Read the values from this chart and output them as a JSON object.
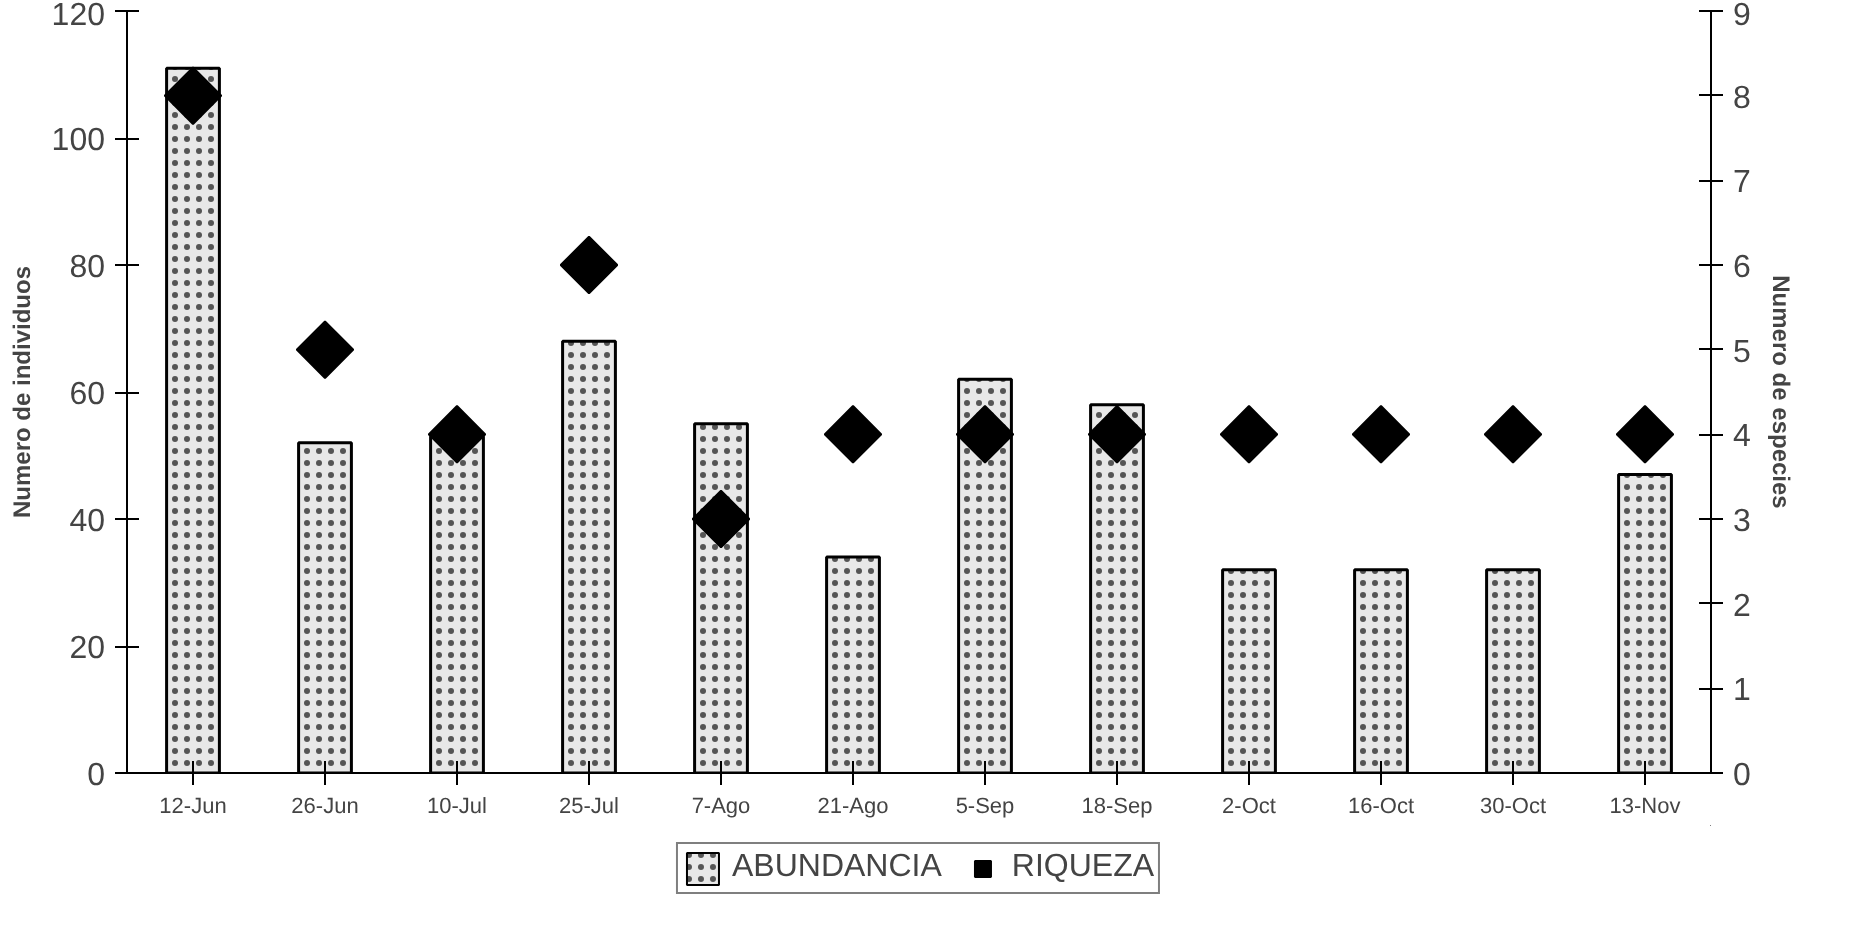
{
  "chart_data": {
    "type": "bar",
    "categories": [
      "12-Jun",
      "26-Jun",
      "10-Jul",
      "25-Jul",
      "7-Ago",
      "21-Ago",
      "5-Sep",
      "18-Sep",
      "2-Oct",
      "16-Oct",
      "30-Oct",
      "13-Nov"
    ],
    "ylabel": "Numero de individuos",
    "y2label": "Numero de especies",
    "series": [
      {
        "name": "ABUNDANCIA",
        "color": "#e8e8e8",
        "values": [
          111,
          52,
          53,
          68,
          55,
          34,
          62,
          58,
          32,
          32,
          32,
          47
        ]
      },
      {
        "name": "RIQUEZA",
        "type": "scatter",
        "axis": "y2",
        "color": "#000000",
        "marker": "diamond",
        "values": [
          8,
          5,
          4,
          6,
          3,
          4,
          4,
          4,
          4,
          4,
          4,
          4
        ]
      }
    ],
    "ylim": [
      0,
      120
    ],
    "yticks": [
      0,
      20,
      40,
      60,
      80,
      100,
      120
    ],
    "y2lim": [
      0,
      9
    ],
    "y2ticks": [
      0,
      1,
      2,
      3,
      4,
      5,
      6,
      7,
      8,
      9
    ],
    "grid": false,
    "legend": "bottom"
  }
}
